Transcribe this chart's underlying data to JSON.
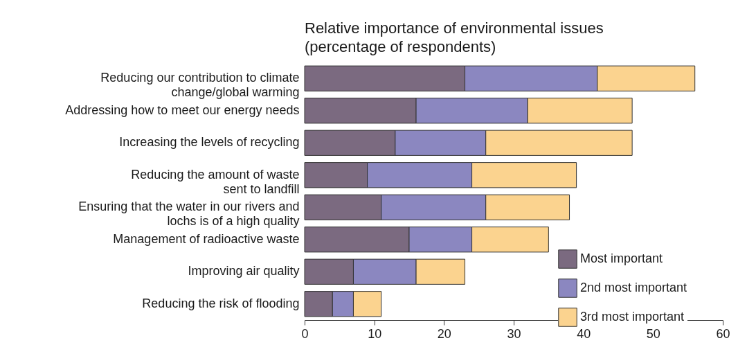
{
  "chart_data": {
    "type": "bar",
    "orientation": "horizontal",
    "stacked": true,
    "title": "Relative importance of environmental issues\n(percentage of respondents)",
    "categories": [
      "Reducing our contribution to climate\nchange/global warming",
      "Addressing how to meet our energy needs",
      "Increasing the levels of recycling",
      "Reducing the amount of waste\nsent to landfill",
      "Ensuring that the water in our rivers and\nlochs is of a high quality",
      "Management of radioactive waste",
      "Improving air quality",
      "Reducing the risk of flooding"
    ],
    "series": [
      {
        "name": "Most important",
        "color": "#7b6a80",
        "values": [
          23,
          16,
          13,
          9,
          11,
          15,
          7,
          4
        ]
      },
      {
        "name": "2nd most important",
        "color": "#8b87c0",
        "values": [
          19,
          16,
          13,
          15,
          15,
          9,
          9,
          3
        ]
      },
      {
        "name": "3rd most important",
        "color": "#fbd38f",
        "values": [
          14,
          15,
          21,
          15,
          12,
          11,
          7,
          4
        ]
      }
    ],
    "xlim": [
      0,
      60
    ],
    "xticks": [
      0,
      10,
      20,
      30,
      40,
      50,
      60
    ],
    "grid": false,
    "legend": "bottom right"
  }
}
